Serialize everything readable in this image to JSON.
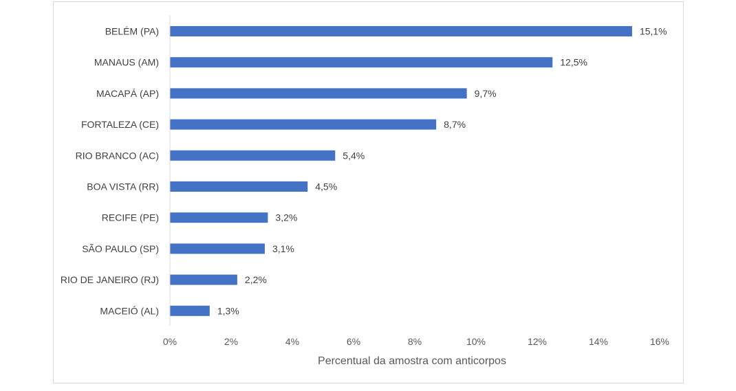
{
  "chart_data": {
    "type": "bar",
    "orientation": "horizontal",
    "categories": [
      "BELÉM (PA)",
      "MANAUS (AM)",
      "MACAPÁ (AP)",
      "FORTALEZA (CE)",
      "RIO BRANCO (AC)",
      "BOA VISTA (RR)",
      "RECIFE (PE)",
      "SÃO PAULO (SP)",
      "RIO DE JANEIRO (RJ)",
      "MACEIÓ (AL)"
    ],
    "values": [
      15.1,
      12.5,
      9.7,
      8.7,
      5.4,
      4.5,
      3.2,
      3.1,
      2.2,
      1.3
    ],
    "value_labels": [
      "15,1%",
      "12,5%",
      "9,7%",
      "8,7%",
      "5,4%",
      "4,5%",
      "3,2%",
      "3,1%",
      "2,2%",
      "1,3%"
    ],
    "xlabel": "Percentual da amostra com anticorpos",
    "ylabel": "",
    "xlim": [
      0,
      16
    ],
    "x_ticks": [
      0,
      2,
      4,
      6,
      8,
      10,
      12,
      14,
      16
    ],
    "x_tick_labels": [
      "0%",
      "2%",
      "4%",
      "6%",
      "8%",
      "10%",
      "12%",
      "14%",
      "16%"
    ],
    "grid": false,
    "legend": "none",
    "bar_color": "#4472c4"
  }
}
